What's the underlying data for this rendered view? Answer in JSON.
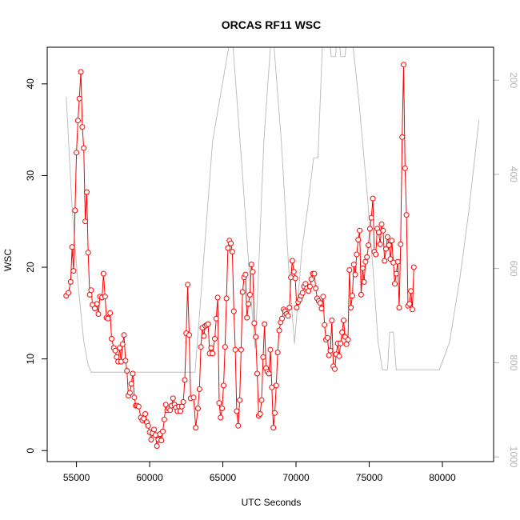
{
  "chart_data": {
    "type": "line",
    "title": "ORCAS RF11 WSC",
    "xlabel": "UTC Seconds",
    "ylabel": "WSC",
    "xlim": [
      53000,
      83500
    ],
    "ylim": [
      -1.2,
      44
    ],
    "x_ticks": [
      55000,
      60000,
      65000,
      70000,
      75000,
      80000
    ],
    "y_ticks": [
      0,
      10,
      20,
      30,
      40
    ],
    "y2_ticks": [
      200,
      400,
      600,
      800,
      1000
    ],
    "y2lim": [
      1010,
      130
    ],
    "colors": {
      "wsc": "#ff0000",
      "secondary": "#bebebe",
      "right_axis": "#b3b3b3"
    },
    "series": [
      {
        "values": [
          [
            54300,
            16.9
          ],
          [
            54450,
            17.2
          ],
          [
            54600,
            18.4
          ],
          [
            54700,
            22.2
          ],
          [
            54800,
            19.6
          ],
          [
            54900,
            26.2
          ],
          [
            55000,
            32.5
          ],
          [
            55100,
            36.0
          ],
          [
            55200,
            38.4
          ],
          [
            55300,
            41.3
          ],
          [
            55400,
            35.3
          ],
          [
            55500,
            33.0
          ],
          [
            55600,
            25.0
          ],
          [
            55700,
            28.2
          ],
          [
            55800,
            21.6
          ],
          [
            55900,
            17.0
          ],
          [
            56000,
            17.5
          ],
          [
            56100,
            15.9
          ],
          [
            56250,
            15.5
          ],
          [
            56400,
            16.0
          ],
          [
            56500,
            14.9
          ],
          [
            56600,
            16.8
          ],
          [
            56750,
            16.7
          ],
          [
            56850,
            19.3
          ],
          [
            56950,
            16.8
          ],
          [
            57050,
            14.5
          ],
          [
            57150,
            14.4
          ],
          [
            57300,
            15.0
          ],
          [
            57400,
            12.2
          ],
          [
            57550,
            11.2
          ],
          [
            57650,
            10.9
          ],
          [
            57750,
            10.2
          ],
          [
            57850,
            9.7
          ],
          [
            57950,
            11.2
          ],
          [
            58050,
            9.7
          ],
          [
            58150,
            11.6
          ],
          [
            58250,
            12.6
          ],
          [
            58350,
            9.8
          ],
          [
            58450,
            8.7
          ],
          [
            58550,
            6.0
          ],
          [
            58650,
            6.3
          ],
          [
            58750,
            7.3
          ],
          [
            58850,
            8.4
          ],
          [
            58950,
            5.8
          ],
          [
            59050,
            4.9
          ],
          [
            59150,
            4.9
          ],
          [
            59250,
            4.8
          ],
          [
            59400,
            3.6
          ],
          [
            59500,
            3.3
          ],
          [
            59600,
            3.5
          ],
          [
            59700,
            4.0
          ],
          [
            59800,
            3.1
          ],
          [
            59900,
            2.7
          ],
          [
            60000,
            2.0
          ],
          [
            60100,
            1.2
          ],
          [
            60200,
            1.9
          ],
          [
            60300,
            2.3
          ],
          [
            60400,
            1.7
          ],
          [
            60500,
            0.5
          ],
          [
            60600,
            1.2
          ],
          [
            60700,
            1.8
          ],
          [
            60800,
            1.1
          ],
          [
            60900,
            2.1
          ],
          [
            61000,
            3.4
          ],
          [
            61100,
            5.0
          ],
          [
            61200,
            4.4
          ],
          [
            61300,
            4.6
          ],
          [
            61400,
            4.4
          ],
          [
            61500,
            4.9
          ],
          [
            61600,
            5.7
          ],
          [
            61700,
            5.0
          ],
          [
            61800,
            4.7
          ],
          [
            61900,
            4.3
          ],
          [
            62000,
            4.8
          ],
          [
            62100,
            4.3
          ],
          [
            62200,
            4.8
          ],
          [
            62300,
            5.3
          ],
          [
            62400,
            7.7
          ],
          [
            62500,
            12.8
          ],
          [
            62600,
            18.1
          ],
          [
            62700,
            12.6
          ],
          [
            62800,
            5.7
          ],
          [
            63000,
            5.8
          ],
          [
            63150,
            2.5
          ],
          [
            63300,
            4.6
          ],
          [
            63400,
            6.7
          ],
          [
            63500,
            11.3
          ],
          [
            63600,
            13.4
          ],
          [
            63700,
            12.5
          ],
          [
            63800,
            13.6
          ],
          [
            63900,
            13.7
          ],
          [
            64000,
            13.8
          ],
          [
            64100,
            10.6
          ],
          [
            64200,
            11.2
          ],
          [
            64300,
            10.6
          ],
          [
            64450,
            12.2
          ],
          [
            64550,
            14.4
          ],
          [
            64650,
            16.7
          ],
          [
            64750,
            5.2
          ],
          [
            64850,
            3.6
          ],
          [
            64950,
            4.6
          ],
          [
            65050,
            7.1
          ],
          [
            65150,
            11.3
          ],
          [
            65250,
            16.6
          ],
          [
            65350,
            22.1
          ],
          [
            65450,
            22.9
          ],
          [
            65550,
            22.6
          ],
          [
            65650,
            21.7
          ],
          [
            65750,
            15.2
          ],
          [
            65850,
            11.0
          ],
          [
            65950,
            4.3
          ],
          [
            66050,
            2.7
          ],
          [
            66150,
            5.5
          ],
          [
            66250,
            11.0
          ],
          [
            66350,
            17.3
          ],
          [
            66450,
            18.9
          ],
          [
            66550,
            19.2
          ],
          [
            66650,
            14.5
          ],
          [
            66750,
            16.0
          ],
          [
            66850,
            17.0
          ],
          [
            66950,
            20.3
          ],
          [
            67050,
            19.5
          ],
          [
            67150,
            13.9
          ],
          [
            67250,
            12.4
          ],
          [
            67350,
            8.4
          ],
          [
            67450,
            3.8
          ],
          [
            67550,
            4.0
          ],
          [
            67650,
            5.5
          ],
          [
            67750,
            10.2
          ],
          [
            67850,
            13.8
          ],
          [
            67950,
            9.0
          ],
          [
            68050,
            8.6
          ],
          [
            68150,
            8.4
          ],
          [
            68250,
            11.0
          ],
          [
            68350,
            6.9
          ],
          [
            68450,
            2.5
          ],
          [
            68550,
            4.1
          ],
          [
            68650,
            7.1
          ],
          [
            68750,
            10.7
          ],
          [
            68850,
            13.1
          ],
          [
            68950,
            14.0
          ],
          [
            69050,
            14.4
          ],
          [
            69150,
            15.4
          ],
          [
            69250,
            15.2
          ],
          [
            69350,
            14.9
          ],
          [
            69450,
            14.7
          ],
          [
            69550,
            15.6
          ],
          [
            69650,
            18.9
          ],
          [
            69750,
            20.7
          ],
          [
            69850,
            19.5
          ],
          [
            69950,
            18.8
          ],
          [
            70050,
            15.6
          ],
          [
            70150,
            16.2
          ],
          [
            70250,
            16.5
          ],
          [
            70350,
            16.9
          ],
          [
            70450,
            17.2
          ],
          [
            70550,
            17.9
          ],
          [
            70650,
            18.2
          ],
          [
            70750,
            17.7
          ],
          [
            70850,
            17.4
          ],
          [
            70950,
            17.9
          ],
          [
            71050,
            18.7
          ],
          [
            71150,
            19.3
          ],
          [
            71250,
            19.3
          ],
          [
            71350,
            17.7
          ],
          [
            71450,
            16.6
          ],
          [
            71550,
            16.3
          ],
          [
            71650,
            16.1
          ],
          [
            71750,
            15.5
          ],
          [
            71850,
            16.8
          ],
          [
            71950,
            13.7
          ],
          [
            72050,
            12.1
          ],
          [
            72150,
            12.3
          ],
          [
            72250,
            10.4
          ],
          [
            72350,
            10.9
          ],
          [
            72450,
            14.2
          ],
          [
            72550,
            9.2
          ],
          [
            72650,
            8.9
          ],
          [
            72750,
            10.5
          ],
          [
            72850,
            11.7
          ],
          [
            72950,
            10.3
          ],
          [
            73050,
            11.7
          ],
          [
            73150,
            12.9
          ],
          [
            73250,
            14.2
          ],
          [
            73350,
            12.4
          ],
          [
            73450,
            11.6
          ],
          [
            73550,
            12.1
          ],
          [
            73650,
            19.7
          ],
          [
            73750,
            15.6
          ],
          [
            73850,
            16.9
          ],
          [
            73950,
            20.3
          ],
          [
            74050,
            19.2
          ],
          [
            74150,
            21.4
          ],
          [
            74250,
            23.0
          ],
          [
            74350,
            24.0
          ],
          [
            74450,
            17.0
          ],
          [
            74550,
            19.9
          ],
          [
            74650,
            18.4
          ],
          [
            74750,
            20.6
          ],
          [
            74850,
            21.1
          ],
          [
            74950,
            22.4
          ],
          [
            75050,
            24.2
          ],
          [
            75150,
            25.4
          ],
          [
            75250,
            27.5
          ],
          [
            75350,
            21.7
          ],
          [
            75450,
            21.4
          ],
          [
            75550,
            24.2
          ],
          [
            75650,
            23.8
          ],
          [
            75750,
            22.5
          ],
          [
            75850,
            24.7
          ],
          [
            75950,
            24.0
          ],
          [
            76050,
            20.7
          ],
          [
            76150,
            22.0
          ],
          [
            76250,
            23.3
          ],
          [
            76350,
            22.4
          ],
          [
            76450,
            20.9
          ],
          [
            76550,
            22.9
          ],
          [
            76650,
            20.5
          ],
          [
            76750,
            18.2
          ],
          [
            76850,
            19.3
          ],
          [
            76950,
            20.6
          ],
          [
            77050,
            15.6
          ],
          [
            77150,
            22.5
          ],
          [
            77250,
            34.2
          ],
          [
            77350,
            42.1
          ],
          [
            77450,
            30.8
          ],
          [
            77550,
            25.7
          ],
          [
            77650,
            15.8
          ],
          [
            77750,
            16.0
          ],
          [
            77850,
            17.4
          ],
          [
            77950,
            15.4
          ],
          [
            78050,
            20.0
          ]
        ]
      },
      {
        "values": [
          [
            54300,
            235
          ],
          [
            54700,
            470
          ],
          [
            55100,
            630
          ],
          [
            55500,
            755
          ],
          [
            55800,
            805
          ],
          [
            56000,
            820
          ],
          [
            56500,
            820
          ],
          [
            60000,
            820
          ],
          [
            63100,
            820
          ],
          [
            63400,
            700
          ],
          [
            64300,
            330
          ],
          [
            65400,
            130
          ],
          [
            65700,
            130
          ],
          [
            66300,
            380
          ],
          [
            66900,
            650
          ],
          [
            67200,
            770
          ],
          [
            67400,
            640
          ],
          [
            67800,
            330
          ],
          [
            68250,
            130
          ],
          [
            68500,
            130
          ],
          [
            69000,
            330
          ],
          [
            69500,
            600
          ],
          [
            69900,
            760
          ],
          [
            70400,
            560
          ],
          [
            70800,
            470
          ],
          [
            71200,
            365
          ],
          [
            71500,
            365
          ],
          [
            71800,
            130
          ],
          [
            72350,
            130
          ],
          [
            72400,
            150
          ],
          [
            72700,
            150
          ],
          [
            72750,
            130
          ],
          [
            73000,
            130
          ],
          [
            73050,
            150
          ],
          [
            73350,
            150
          ],
          [
            73400,
            130
          ],
          [
            73900,
            130
          ],
          [
            74300,
            245
          ],
          [
            74900,
            455
          ],
          [
            75350,
            640
          ],
          [
            75600,
            755
          ],
          [
            75900,
            815
          ],
          [
            76250,
            815
          ],
          [
            76400,
            735
          ],
          [
            76650,
            735
          ],
          [
            76850,
            815
          ],
          [
            77300,
            815
          ],
          [
            79000,
            815
          ],
          [
            79800,
            815
          ],
          [
            80500,
            755
          ],
          [
            81200,
            620
          ],
          [
            81800,
            480
          ],
          [
            82500,
            285
          ]
        ]
      }
    ]
  }
}
